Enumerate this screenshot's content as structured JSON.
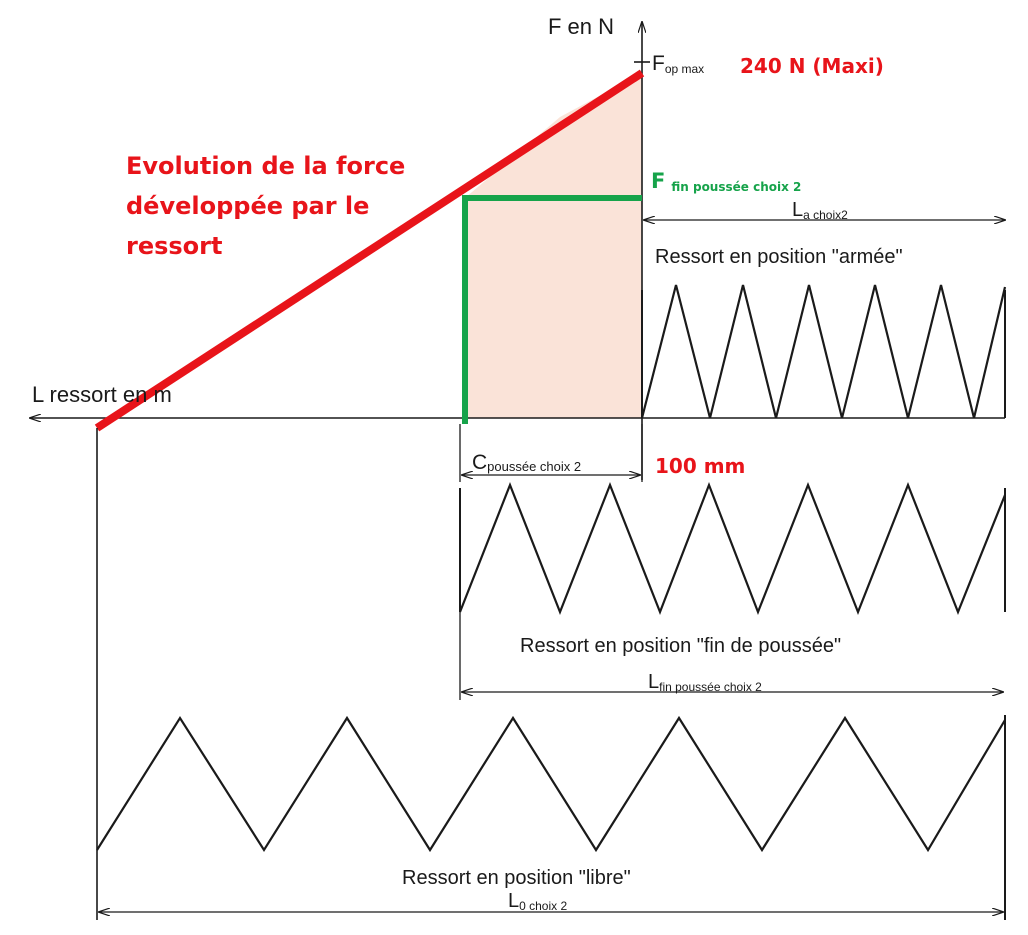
{
  "axes": {
    "y_label": "F en N",
    "x_label": "L ressort en m"
  },
  "force_max": {
    "symbol": "F",
    "subscript": "op max",
    "value_label": "240 N (Maxi)"
  },
  "force_end": {
    "symbol": "F",
    "subscript": "fin poussée choix 2"
  },
  "curve_label": {
    "line1": "Evolution de la force",
    "line2": "développée par le",
    "line3": "ressort"
  },
  "stroke": {
    "symbol": "C",
    "subscript": "poussée choix 2",
    "value_label": "100 mm"
  },
  "springs": {
    "armed": {
      "caption": "Ressort en position \"armée\"",
      "dim_symbol": "L",
      "dim_subscript": "a choix2"
    },
    "end_push": {
      "caption": "Ressort en position \"fin de poussée\"",
      "dim_symbol": "L",
      "dim_subscript": "fin poussée choix 2"
    },
    "free": {
      "caption": "Ressort en position \"libre\"",
      "dim_symbol": "L",
      "dim_subscript": "0 choix 2"
    }
  },
  "colors": {
    "force_curve": "#e8141a",
    "end_force_line": "#16a34a",
    "energy_area": "#fae3d8",
    "ink": "#1a1a1a"
  }
}
